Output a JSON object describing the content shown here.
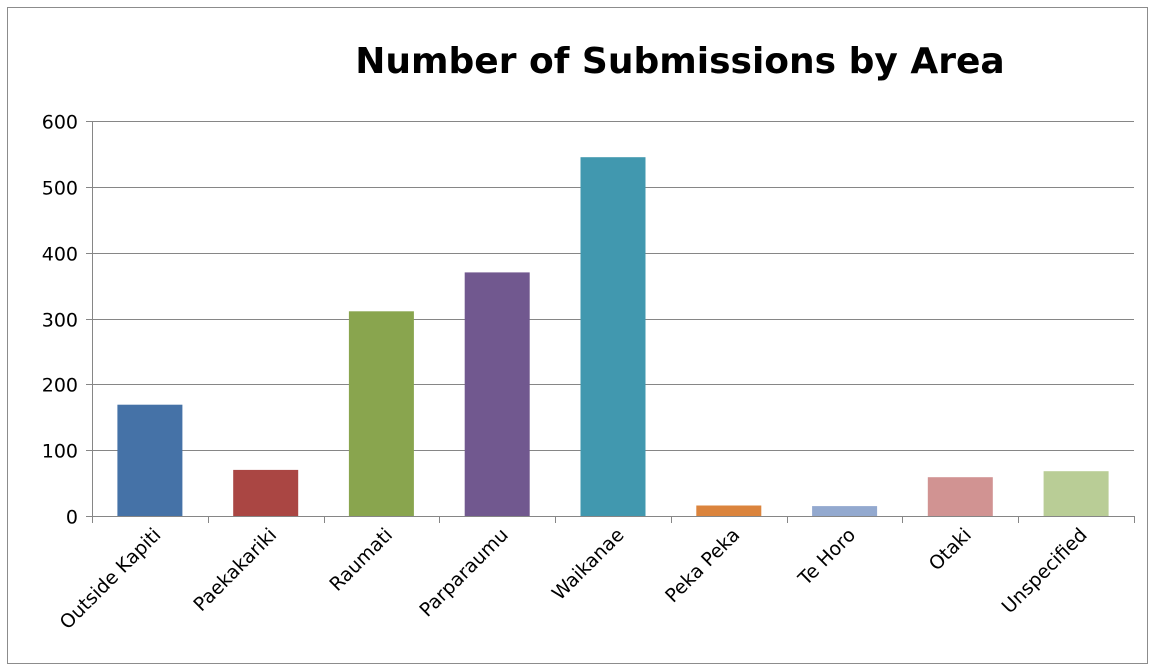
{
  "chart_data": {
    "type": "bar",
    "title": "Number of Submissions by Area",
    "xlabel": "",
    "ylabel": "",
    "categories": [
      "Outside Kapiti",
      "Paekakariki",
      "Raumati",
      "Parparaumu",
      "Waikanae",
      "Peka Peka",
      "Te Horo",
      "Otaki",
      "Unspecified"
    ],
    "values": [
      169,
      70,
      311,
      370,
      545,
      16,
      15,
      59,
      68
    ],
    "colors": [
      "#4572a7",
      "#aa4643",
      "#89a54e",
      "#71588f",
      "#4198af",
      "#db843d",
      "#93a9cf",
      "#d19392",
      "#b9cd96"
    ],
    "ylim": [
      0,
      600
    ],
    "yticks": [
      0,
      100,
      200,
      300,
      400,
      500,
      600
    ],
    "grid": true,
    "legend": "none"
  }
}
